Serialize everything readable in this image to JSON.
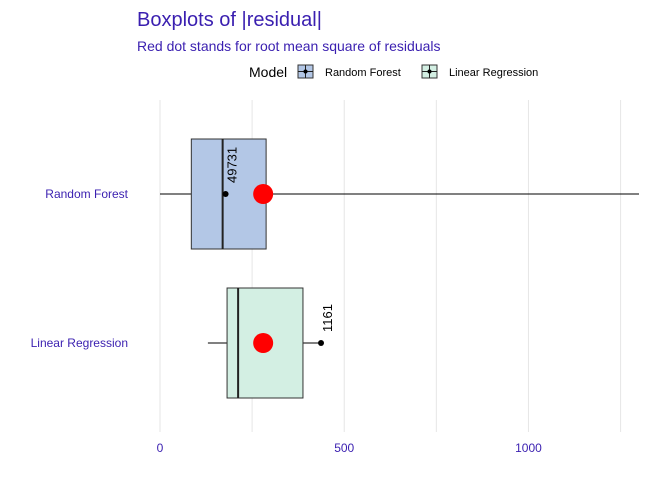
{
  "chart_data": {
    "type": "boxplot",
    "title": "Boxplots of |residual|",
    "subtitle": "Red dot stands for root mean square of residuals",
    "legend": {
      "title": "Model",
      "position": "top"
    },
    "xlim": [
      0,
      1300
    ],
    "x_ticks": [
      0,
      500,
      1000
    ],
    "x_tick_labels": [
      "0",
      "500",
      "1000"
    ],
    "grid": true,
    "categories": [
      "Random Forest",
      "Linear Regression"
    ],
    "series": [
      {
        "name": "Random Forest",
        "color": "#b3c7e6",
        "whisker_low": 0,
        "q1": 85,
        "median": 170,
        "q3": 288,
        "whisker_high": 1320,
        "mean_point": 178,
        "mean_label": "49731",
        "rms": 280
      },
      {
        "name": "Linear Regression",
        "color": "#d3efe3",
        "whisker_low": 130,
        "q1": 182,
        "median": 212,
        "q3": 388,
        "whisker_high": 440,
        "mean_point": 437,
        "mean_label": "1161",
        "rms": 280
      }
    ],
    "colors": {
      "title": "#3a1fb0",
      "rms_dot": "#ff0000",
      "grid": "#e6e6e6"
    }
  }
}
